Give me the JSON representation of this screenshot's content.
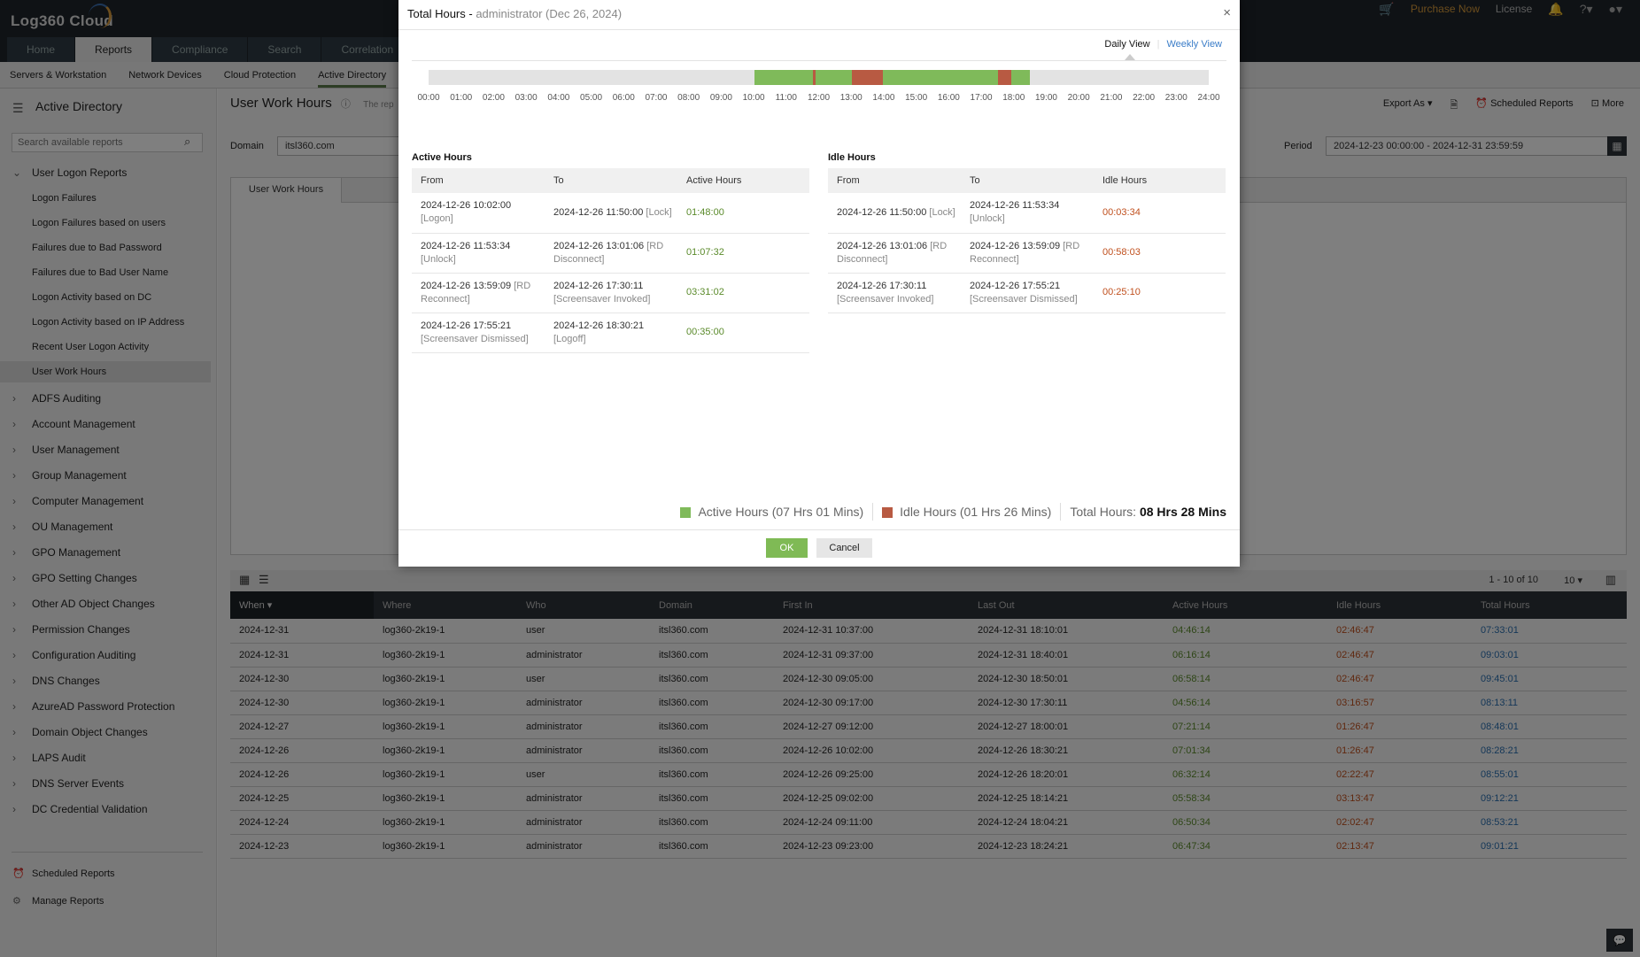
{
  "app": {
    "logo": "Log360 Cloud",
    "tabs": [
      "Home",
      "Reports",
      "Compliance",
      "Search",
      "Correlation"
    ],
    "active_tab": 1,
    "top_links": {
      "purchase": "Purchase Now",
      "license": "License"
    },
    "subnav": [
      "Servers & Workstation",
      "Network Devices",
      "Cloud Protection",
      "Active Directory"
    ],
    "active_subnav": 3
  },
  "sidebar": {
    "title": "Active Directory",
    "search_placeholder": "Search available reports",
    "group": "User Logon Reports",
    "items": [
      "Logon Failures",
      "Logon Failures based on users",
      "Failures due to Bad Password",
      "Failures due to Bad User Name",
      "Logon Activity based on DC",
      "Logon Activity based on IP Address",
      "Recent User Logon Activity",
      "User Work Hours"
    ],
    "selected": 7,
    "categories": [
      "ADFS Auditing",
      "Account Management",
      "User Management",
      "Group Management",
      "Computer Management",
      "OU Management",
      "GPO Management",
      "GPO Setting Changes",
      "Other AD Object Changes",
      "Permission Changes",
      "Configuration Auditing",
      "DNS Changes",
      "AzureAD Password Protection",
      "Domain Object Changes",
      "LAPS Audit",
      "DNS Server Events",
      "DC Credential Validation"
    ],
    "footer": [
      "Scheduled Reports",
      "Manage Reports"
    ]
  },
  "main": {
    "title": "User Work Hours",
    "desc": "The rep",
    "export": "Export As",
    "scheduled": "Scheduled Reports",
    "more": "More",
    "domain_label": "Domain",
    "domain_value": "itsl360.com",
    "period_label": "Period",
    "period_value": "2024-12-23 00:00:00 - 2024-12-31 23:59:59",
    "report_tab": "User Work Hours",
    "pagination": "1 - 10 of 10",
    "page_size": "10",
    "columns": [
      "When",
      "Where",
      "Who",
      "Domain",
      "First In",
      "Last Out",
      "Active Hours",
      "Idle Hours",
      "Total Hours"
    ],
    "rows": [
      [
        "2024-12-31",
        "log360-2k19-1",
        "user",
        "itsl360.com",
        "2024-12-31 10:37:00",
        "2024-12-31 18:10:01",
        "04:46:14",
        "02:46:47",
        "07:33:01"
      ],
      [
        "2024-12-31",
        "log360-2k19-1",
        "administrator",
        "itsl360.com",
        "2024-12-31 09:37:00",
        "2024-12-31 18:40:01",
        "06:16:14",
        "02:46:47",
        "09:03:01"
      ],
      [
        "2024-12-30",
        "log360-2k19-1",
        "user",
        "itsl360.com",
        "2024-12-30 09:05:00",
        "2024-12-30 18:50:01",
        "06:58:14",
        "02:46:47",
        "09:45:01"
      ],
      [
        "2024-12-30",
        "log360-2k19-1",
        "administrator",
        "itsl360.com",
        "2024-12-30 09:17:00",
        "2024-12-30 17:30:11",
        "04:56:14",
        "03:16:57",
        "08:13:11"
      ],
      [
        "2024-12-27",
        "log360-2k19-1",
        "administrator",
        "itsl360.com",
        "2024-12-27 09:12:00",
        "2024-12-27 18:00:01",
        "07:21:14",
        "01:26:47",
        "08:48:01"
      ],
      [
        "2024-12-26",
        "log360-2k19-1",
        "administrator",
        "itsl360.com",
        "2024-12-26 10:02:00",
        "2024-12-26 18:30:21",
        "07:01:34",
        "01:26:47",
        "08:28:21"
      ],
      [
        "2024-12-26",
        "log360-2k19-1",
        "user",
        "itsl360.com",
        "2024-12-26 09:25:00",
        "2024-12-26 18:20:01",
        "06:32:14",
        "02:22:47",
        "08:55:01"
      ],
      [
        "2024-12-25",
        "log360-2k19-1",
        "administrator",
        "itsl360.com",
        "2024-12-25 09:02:00",
        "2024-12-25 18:14:21",
        "05:58:34",
        "03:13:47",
        "09:12:21"
      ],
      [
        "2024-12-24",
        "log360-2k19-1",
        "administrator",
        "itsl360.com",
        "2024-12-24 09:11:00",
        "2024-12-24 18:04:21",
        "06:50:34",
        "02:02:47",
        "08:53:21"
      ],
      [
        "2024-12-23",
        "log360-2k19-1",
        "administrator",
        "itsl360.com",
        "2024-12-23 09:23:00",
        "2024-12-23 18:24:21",
        "06:47:34",
        "02:13:47",
        "09:01:21"
      ]
    ]
  },
  "modal": {
    "title": "Total Hours - ",
    "subtitle": "administrator (Dec 26, 2024)",
    "daily": "Daily View",
    "weekly": "Weekly View",
    "active_view": "Daily View",
    "timeline": {
      "ticks": [
        "00:00",
        "01:00",
        "02:00",
        "03:00",
        "04:00",
        "05:00",
        "06:00",
        "07:00",
        "08:00",
        "09:00",
        "10:00",
        "11:00",
        "12:00",
        "13:00",
        "14:00",
        "15:00",
        "16:00",
        "17:00",
        "18:00",
        "19:00",
        "20:00",
        "21:00",
        "22:00",
        "23:00",
        "24:00"
      ],
      "colors": {
        "active": "#7fba5a",
        "idle": "#b85a42",
        "empty": "#e3e3e3"
      },
      "segments": [
        [
          "active",
          "10:02:00",
          "11:50:00"
        ],
        [
          "idle",
          "11:50:00",
          "11:53:34"
        ],
        [
          "active",
          "11:53:34",
          "13:01:06"
        ],
        [
          "idle",
          "13:01:06",
          "13:59:09"
        ],
        [
          "active",
          "13:59:09",
          "17:30:11"
        ],
        [
          "idle",
          "17:30:11",
          "17:55:21"
        ],
        [
          "active",
          "17:55:21",
          "18:30:21"
        ]
      ]
    },
    "active": {
      "title": "Active Hours",
      "columns": [
        "From",
        "To",
        "Active Hours"
      ],
      "rows": [
        [
          "2024-12-26 10:02:00",
          "[Logon]",
          "2024-12-26 11:50:00",
          "[Lock]",
          "01:48:00"
        ],
        [
          "2024-12-26 11:53:34",
          "[Unlock]",
          "2024-12-26 13:01:06",
          "[RD Disconnect]",
          "01:07:32"
        ],
        [
          "2024-12-26 13:59:09",
          "[RD Reconnect]",
          "2024-12-26 17:30:11",
          "[Screensaver Invoked]",
          "03:31:02"
        ],
        [
          "2024-12-26 17:55:21",
          "[Screensaver Dismissed]",
          "2024-12-26 18:30:21",
          "[Logoff]",
          "00:35:00"
        ]
      ]
    },
    "idle": {
      "title": "Idle Hours",
      "columns": [
        "From",
        "To",
        "Idle Hours"
      ],
      "rows": [
        [
          "2024-12-26 11:50:00",
          "[Lock]",
          "2024-12-26 11:53:34",
          "[Unlock]",
          "00:03:34"
        ],
        [
          "2024-12-26 13:01:06",
          "[RD Disconnect]",
          "2024-12-26 13:59:09",
          "[RD Reconnect]",
          "00:58:03"
        ],
        [
          "2024-12-26 17:30:11",
          "[Screensaver Invoked]",
          "2024-12-26 17:55:21",
          "[Screensaver Dismissed]",
          "00:25:10"
        ]
      ]
    },
    "legend": {
      "active": "Active Hours (07 Hrs 01 Mins)",
      "idle": "Idle Hours (01 Hrs 26 Mins)",
      "total_label": "Total Hours: ",
      "total_value": "08 Hrs 28 Mins"
    },
    "ok": "OK",
    "cancel": "Cancel"
  }
}
